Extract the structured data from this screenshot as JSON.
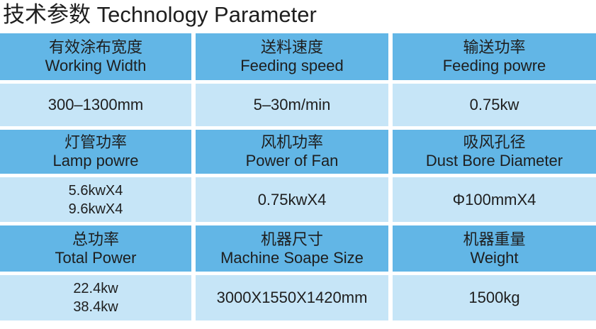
{
  "title": "技术参数 Technology Parameter",
  "sections": [
    {
      "headers": [
        {
          "zh": "有效涂布宽度",
          "en": "Working Width"
        },
        {
          "zh": "送料速度",
          "en": "Feeding speed"
        },
        {
          "zh": "输送功率",
          "en": "Feeding powre"
        }
      ],
      "values": [
        [
          "300–1300mm"
        ],
        [
          "5–30m/min"
        ],
        [
          "0.75kw"
        ]
      ]
    },
    {
      "headers": [
        {
          "zh": "灯管功率",
          "en": "Lamp powre"
        },
        {
          "zh": "风机功率",
          "en": "Power of Fan"
        },
        {
          "zh": "吸风孔径",
          "en": "Dust Bore Diameter"
        }
      ],
      "values": [
        [
          "5.6kwX4",
          "9.6kwX4"
        ],
        [
          "0.75kwX4"
        ],
        [
          "Φ100mmX4"
        ]
      ]
    },
    {
      "headers": [
        {
          "zh": "总功率",
          "en": "Total Power"
        },
        {
          "zh": "机器尺寸",
          "en": "Machine Soape Size"
        },
        {
          "zh": "机器重量",
          "en": "Weight"
        }
      ],
      "values": [
        [
          "22.4kw",
          "38.4kw"
        ],
        [
          "3000X1550X1420mm"
        ],
        [
          "1500kg"
        ]
      ]
    }
  ]
}
